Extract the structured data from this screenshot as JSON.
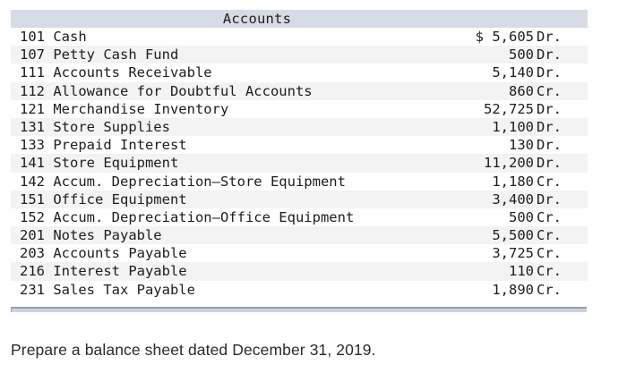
{
  "table": {
    "header": "Accounts",
    "rows": [
      {
        "name": "101 Cash",
        "amount": "$ 5,605",
        "side": "Dr."
      },
      {
        "name": "107 Petty Cash Fund",
        "amount": "500",
        "side": "Dr."
      },
      {
        "name": "111 Accounts Receivable",
        "amount": "5,140",
        "side": "Dr."
      },
      {
        "name": "112 Allowance for Doubtful Accounts",
        "amount": "860",
        "side": "Cr."
      },
      {
        "name": "121 Merchandise Inventory",
        "amount": "52,725",
        "side": "Dr."
      },
      {
        "name": "131 Store Supplies",
        "amount": "1,100",
        "side": "Dr."
      },
      {
        "name": "133 Prepaid Interest",
        "amount": "130",
        "side": "Dr."
      },
      {
        "name": "141 Store Equipment",
        "amount": "11,200",
        "side": "Dr."
      },
      {
        "name": "142 Accum. Depreciation–Store Equipment",
        "amount": "1,180",
        "side": "Cr."
      },
      {
        "name": "151 Office Equipment",
        "amount": "3,400",
        "side": "Dr."
      },
      {
        "name": "152 Accum. Depreciation–Office Equipment",
        "amount": "500",
        "side": "Cr."
      },
      {
        "name": "201 Notes Payable",
        "amount": "5,500",
        "side": "Cr."
      },
      {
        "name": "203 Accounts Payable",
        "amount": "3,725",
        "side": "Cr."
      },
      {
        "name": "216 Interest Payable",
        "amount": "110",
        "side": "Cr."
      },
      {
        "name": "231 Sales Tax Payable",
        "amount": "1,890",
        "side": "Cr."
      }
    ]
  },
  "instruction": "Prepare a balance sheet dated December 31, 2019.",
  "colors": {
    "header_bg": "#d6dbe5",
    "alt_row_bg": "#f3f3f3",
    "bottom_bar_bg": "#cbd2de"
  }
}
